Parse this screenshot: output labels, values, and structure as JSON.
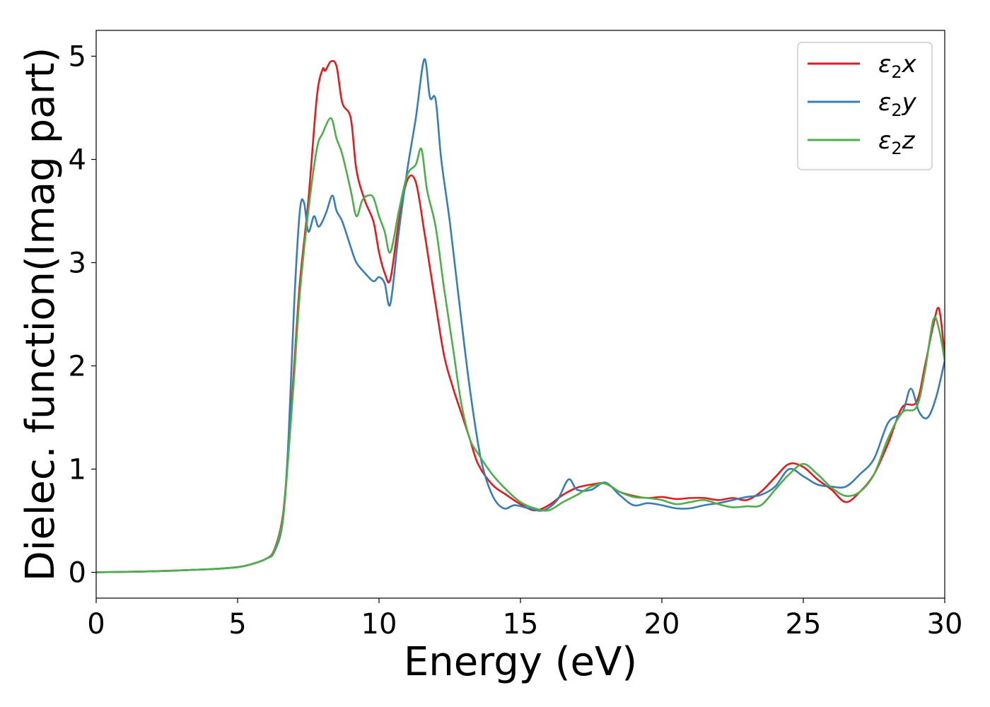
{
  "chart_data": {
    "type": "line",
    "xlabel": "Energy (eV)",
    "ylabel": "Dielec. function(Imag part)",
    "xlim": [
      0,
      30
    ],
    "ylim": [
      -0.25,
      5.25
    ],
    "xticks": [
      0,
      5,
      10,
      15,
      20,
      25,
      30
    ],
    "yticks": [
      0,
      1,
      2,
      3,
      4,
      5
    ],
    "grid": false,
    "legend_position": "top-right",
    "series": [
      {
        "name": "ε₂x",
        "label_main": "ε",
        "label_sub": "2",
        "label_suffix": "x",
        "color": "#e41a1c",
        "x": [
          0,
          2,
          4,
          5,
          5.5,
          6,
          6.3,
          6.6,
          6.8,
          7.0,
          7.2,
          7.5,
          7.8,
          8.0,
          8.1,
          8.3,
          8.5,
          8.7,
          9.0,
          9.2,
          9.5,
          9.8,
          10.0,
          10.2,
          10.4,
          10.7,
          11.0,
          11.3,
          11.6,
          11.8,
          12.0,
          12.3,
          12.6,
          12.9,
          13.2,
          13.5,
          14.0,
          14.5,
          15.0,
          15.5,
          16.0,
          16.5,
          17.0,
          17.5,
          18.0,
          18.5,
          19.0,
          19.5,
          20.0,
          20.5,
          21.0,
          21.5,
          22.0,
          22.5,
          23.0,
          23.5,
          24.0,
          24.5,
          25.0,
          25.5,
          26.0,
          26.5,
          27.0,
          27.5,
          28.0,
          28.5,
          29.0,
          29.3,
          29.6,
          29.8,
          30.0
        ],
        "y": [
          0.0,
          0.01,
          0.03,
          0.05,
          0.08,
          0.13,
          0.22,
          0.55,
          1.2,
          2.0,
          2.8,
          3.6,
          4.6,
          4.87,
          4.86,
          4.95,
          4.9,
          4.55,
          4.4,
          3.9,
          3.6,
          3.4,
          3.1,
          2.9,
          2.84,
          3.4,
          3.8,
          3.78,
          3.3,
          2.95,
          2.6,
          2.1,
          1.8,
          1.55,
          1.3,
          1.05,
          0.85,
          0.75,
          0.66,
          0.6,
          0.65,
          0.75,
          0.82,
          0.85,
          0.86,
          0.78,
          0.74,
          0.72,
          0.73,
          0.71,
          0.72,
          0.72,
          0.7,
          0.72,
          0.7,
          0.78,
          0.92,
          1.05,
          1.02,
          0.9,
          0.8,
          0.68,
          0.78,
          0.95,
          1.25,
          1.6,
          1.65,
          2.0,
          2.4,
          2.55,
          2.1
        ]
      },
      {
        "name": "ε₂y",
        "label_main": "ε",
        "label_sub": "2",
        "label_suffix": "y",
        "color": "#377eb8",
        "x": [
          0,
          2,
          4,
          5,
          5.5,
          6,
          6.3,
          6.6,
          6.8,
          7.0,
          7.2,
          7.35,
          7.5,
          7.7,
          7.85,
          8.0,
          8.15,
          8.35,
          8.5,
          8.7,
          9.0,
          9.2,
          9.5,
          9.8,
          10.0,
          10.2,
          10.4,
          10.7,
          11.0,
          11.3,
          11.6,
          11.8,
          12.0,
          12.2,
          12.5,
          12.8,
          13.2,
          13.6,
          14.0,
          14.4,
          14.8,
          15.3,
          15.8,
          16.3,
          16.7,
          17.0,
          17.5,
          18.0,
          18.5,
          19.0,
          19.5,
          20.0,
          20.5,
          21.0,
          21.5,
          22.0,
          22.5,
          23.0,
          23.5,
          24.0,
          24.5,
          25.0,
          25.5,
          26.0,
          26.5,
          27.0,
          27.5,
          28.0,
          28.5,
          28.8,
          29.1,
          29.4,
          29.7,
          30.0
        ],
        "y": [
          0.0,
          0.01,
          0.03,
          0.05,
          0.08,
          0.13,
          0.2,
          0.5,
          1.3,
          2.6,
          3.5,
          3.58,
          3.3,
          3.45,
          3.35,
          3.4,
          3.5,
          3.65,
          3.5,
          3.4,
          3.15,
          3.0,
          2.9,
          2.82,
          2.86,
          2.8,
          2.6,
          3.3,
          3.9,
          4.4,
          4.97,
          4.6,
          4.58,
          4.0,
          3.4,
          2.7,
          1.8,
          1.1,
          0.75,
          0.62,
          0.65,
          0.62,
          0.6,
          0.7,
          0.9,
          0.8,
          0.8,
          0.87,
          0.75,
          0.65,
          0.67,
          0.65,
          0.62,
          0.62,
          0.65,
          0.67,
          0.7,
          0.73,
          0.75,
          0.83,
          1.0,
          0.93,
          0.85,
          0.83,
          0.83,
          0.95,
          1.1,
          1.45,
          1.55,
          1.78,
          1.55,
          1.5,
          1.7,
          2.05
        ]
      },
      {
        "name": "ε₂z",
        "label_main": "ε",
        "label_sub": "2",
        "label_suffix": "z",
        "color": "#4daf4a",
        "x": [
          0,
          2,
          4,
          5,
          5.5,
          6,
          6.3,
          6.6,
          6.8,
          7.0,
          7.2,
          7.5,
          7.8,
          8.0,
          8.3,
          8.5,
          8.7,
          9.0,
          9.2,
          9.4,
          9.6,
          9.8,
          10.0,
          10.2,
          10.4,
          10.7,
          11.0,
          11.3,
          11.5,
          11.7,
          12.0,
          12.3,
          12.6,
          12.9,
          13.2,
          13.5,
          14.0,
          14.5,
          15.0,
          15.5,
          16.0,
          16.5,
          17.0,
          17.5,
          18.0,
          18.5,
          19.0,
          19.5,
          20.0,
          20.5,
          21.0,
          21.5,
          22.0,
          22.5,
          23.0,
          23.5,
          24.0,
          24.5,
          25.0,
          25.5,
          26.0,
          26.5,
          27.0,
          27.5,
          28.0,
          28.5,
          29.0,
          29.3,
          29.6,
          29.8,
          30.0
        ],
        "y": [
          0.0,
          0.01,
          0.03,
          0.05,
          0.08,
          0.13,
          0.21,
          0.52,
          1.15,
          1.9,
          2.7,
          3.5,
          4.1,
          4.25,
          4.4,
          4.2,
          4.05,
          3.7,
          3.45,
          3.6,
          3.65,
          3.63,
          3.45,
          3.3,
          3.1,
          3.5,
          3.85,
          3.95,
          4.1,
          3.7,
          3.35,
          2.75,
          2.2,
          1.65,
          1.3,
          1.15,
          0.95,
          0.8,
          0.68,
          0.62,
          0.6,
          0.68,
          0.75,
          0.83,
          0.86,
          0.78,
          0.73,
          0.72,
          0.7,
          0.66,
          0.68,
          0.7,
          0.66,
          0.63,
          0.64,
          0.65,
          0.8,
          0.95,
          1.05,
          0.95,
          0.82,
          0.74,
          0.78,
          0.95,
          1.3,
          1.55,
          1.6,
          1.95,
          2.45,
          2.35,
          2.05
        ]
      }
    ]
  }
}
